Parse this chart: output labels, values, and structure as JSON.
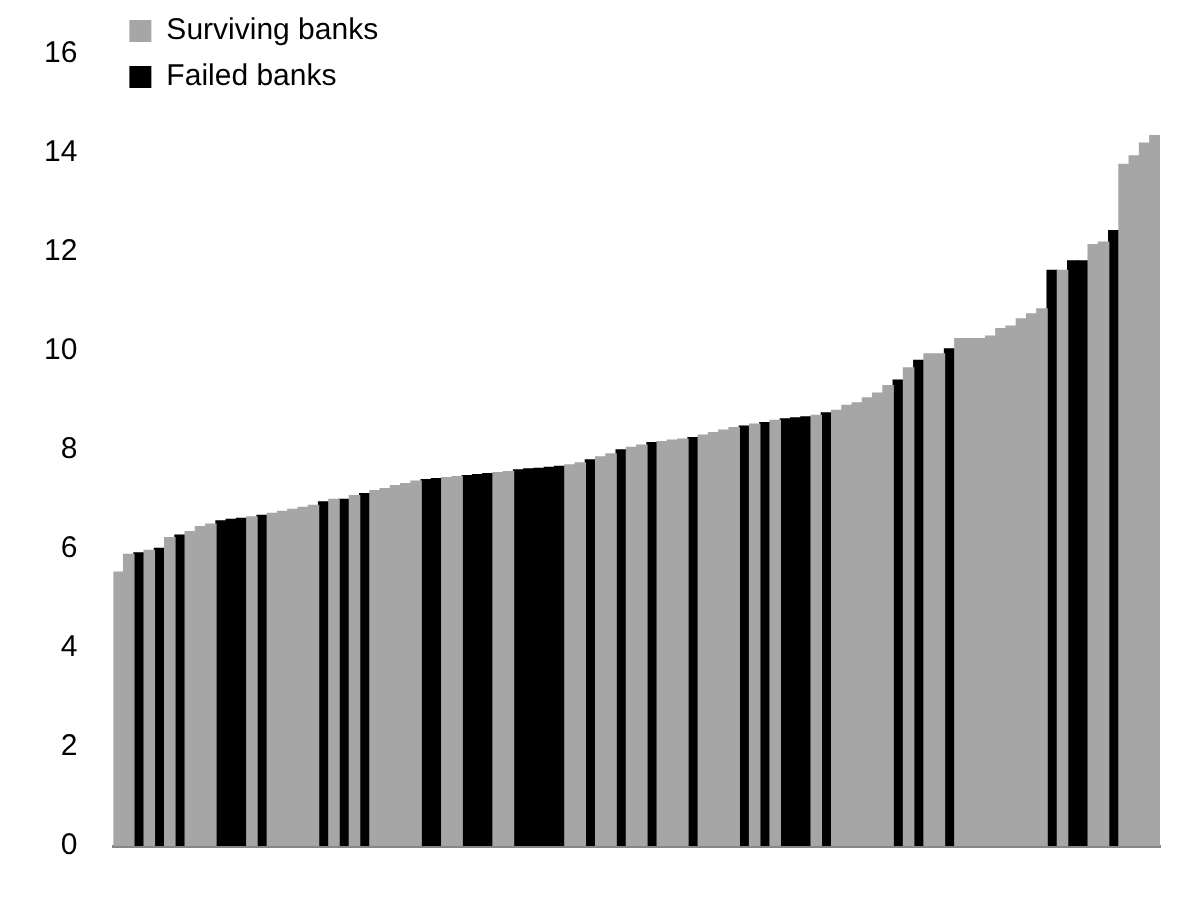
{
  "chart_data": {
    "type": "bar",
    "categories": [
      null,
      null,
      null,
      null,
      null,
      null,
      null,
      null,
      null,
      null,
      null,
      null,
      null,
      null,
      null,
      null,
      null,
      null,
      null,
      null,
      null,
      null,
      null,
      null,
      null,
      null,
      null,
      null,
      null,
      null,
      null,
      null,
      null,
      null,
      null,
      null,
      null,
      null,
      null,
      null,
      null,
      null,
      null,
      null,
      null,
      null,
      null,
      null,
      null,
      null,
      null,
      null,
      null,
      null,
      null,
      null,
      null,
      null,
      null,
      null,
      null,
      null,
      null,
      null,
      null,
      null,
      null,
      null,
      null,
      null,
      null,
      null,
      null,
      null,
      null,
      null,
      null,
      null,
      null,
      null,
      null,
      null,
      null,
      null,
      null,
      null,
      null,
      null,
      null,
      null,
      null,
      null,
      null,
      null,
      null,
      null,
      null,
      null,
      null,
      null,
      null,
      null
    ],
    "series": [
      {
        "name": "Surviving banks",
        "color": "#a6a6a6",
        "values": [
          5.53,
          5.89,
          null,
          5.97,
          null,
          6.23,
          null,
          6.35,
          6.45,
          6.5,
          null,
          null,
          null,
          6.65,
          null,
          6.72,
          6.76,
          6.8,
          6.84,
          6.88,
          null,
          7.0,
          null,
          7.08,
          null,
          7.18,
          7.22,
          7.28,
          7.32,
          7.37,
          null,
          null,
          7.44,
          7.46,
          null,
          null,
          null,
          7.54,
          7.56,
          null,
          null,
          null,
          null,
          null,
          7.7,
          7.74,
          null,
          7.86,
          7.92,
          null,
          8.05,
          8.1,
          null,
          8.17,
          8.2,
          8.22,
          null,
          8.3,
          8.35,
          8.4,
          8.45,
          null,
          8.52,
          null,
          8.6,
          null,
          null,
          null,
          8.7,
          null,
          8.8,
          8.9,
          8.95,
          9.05,
          9.15,
          9.3,
          null,
          9.66,
          null,
          9.94,
          9.94,
          null,
          10.25,
          10.25,
          10.25,
          10.3,
          10.45,
          10.5,
          10.65,
          10.75,
          10.85,
          null,
          11.63,
          null,
          null,
          12.15,
          12.2,
          null,
          13.77,
          13.94,
          14.2,
          14.35
        ]
      },
      {
        "name": "Failed banks",
        "color": "#000000",
        "values": [
          null,
          null,
          5.92,
          null,
          6.01,
          null,
          6.28,
          null,
          null,
          null,
          6.57,
          6.6,
          6.62,
          null,
          6.68,
          null,
          null,
          null,
          null,
          null,
          6.95,
          null,
          7.0,
          null,
          7.12,
          null,
          null,
          null,
          null,
          null,
          7.4,
          7.42,
          null,
          null,
          7.48,
          7.5,
          7.52,
          null,
          null,
          7.6,
          7.62,
          7.63,
          7.65,
          7.67,
          null,
          null,
          7.8,
          null,
          null,
          8.0,
          null,
          null,
          8.15,
          null,
          null,
          null,
          8.25,
          null,
          null,
          null,
          null,
          8.48,
          null,
          8.55,
          null,
          8.63,
          8.65,
          8.67,
          null,
          8.75,
          null,
          null,
          null,
          null,
          null,
          null,
          9.41,
          null,
          9.81,
          null,
          null,
          10.04,
          null,
          null,
          null,
          null,
          null,
          null,
          null,
          null,
          null,
          11.63,
          null,
          11.82,
          11.82,
          null,
          null,
          12.43,
          null,
          null,
          null,
          null
        ]
      }
    ],
    "ylim": [
      0,
      16
    ],
    "yticks": [
      0,
      2,
      4,
      6,
      8,
      10,
      12,
      14,
      16
    ],
    "grid": false,
    "legend": "top left",
    "tick_labels": "y"
  }
}
